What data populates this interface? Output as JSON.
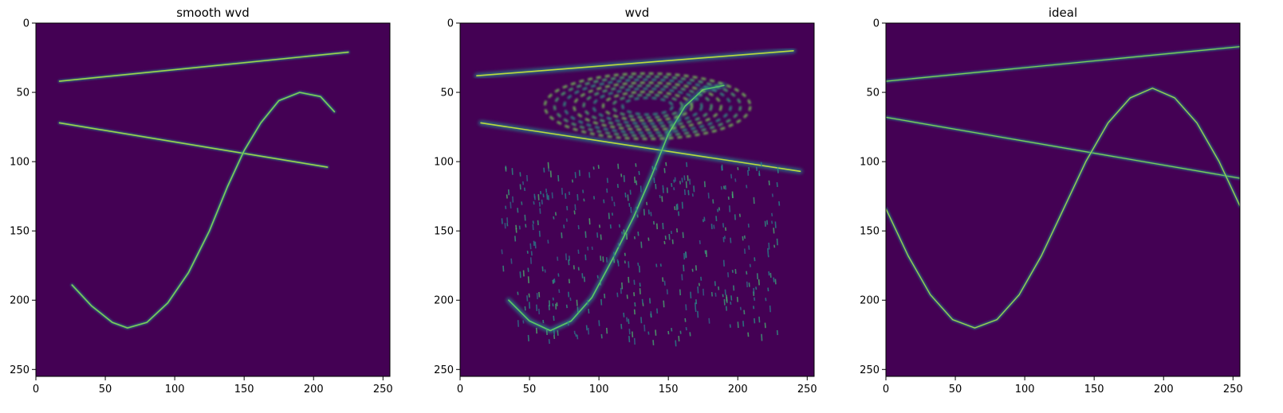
{
  "chart_data": [
    {
      "type": "heatmap",
      "title": "smooth wvd",
      "xlim": [
        0,
        255
      ],
      "ylim": [
        255,
        0
      ],
      "xticks": [
        0,
        50,
        100,
        150,
        200,
        250
      ],
      "yticks": [
        0,
        50,
        100,
        150,
        200,
        250
      ],
      "colormap": "viridis",
      "background": "#440154",
      "features": [
        {
          "kind": "line",
          "name": "upper chirp",
          "points": [
            [
              17,
              42
            ],
            [
              225,
              21
            ]
          ],
          "intensity": 0.85
        },
        {
          "kind": "line",
          "name": "lower chirp",
          "points": [
            [
              17,
              72
            ],
            [
              210,
              104
            ]
          ],
          "intensity": 0.85
        },
        {
          "kind": "curve",
          "name": "sine",
          "points": [
            [
              26,
              189
            ],
            [
              40,
              204
            ],
            [
              55,
              216
            ],
            [
              66,
              220
            ],
            [
              80,
              216
            ],
            [
              95,
              202
            ],
            [
              110,
              180
            ],
            [
              125,
              150
            ],
            [
              138,
              118
            ],
            [
              150,
              92
            ],
            [
              162,
              72
            ],
            [
              175,
              56
            ],
            [
              190,
              50
            ],
            [
              205,
              53
            ],
            [
              215,
              64
            ]
          ],
          "intensity": 0.8
        }
      ]
    },
    {
      "type": "heatmap",
      "title": "wvd",
      "xlim": [
        0,
        255
      ],
      "ylim": [
        255,
        0
      ],
      "xticks": [
        0,
        50,
        100,
        150,
        200,
        250
      ],
      "yticks": [
        0,
        50,
        100,
        150,
        200,
        250
      ],
      "colormap": "viridis",
      "background": "#440154",
      "features": [
        {
          "kind": "line",
          "name": "upper chirp",
          "points": [
            [
              12,
              38
            ],
            [
              240,
              20
            ]
          ],
          "intensity": 0.9
        },
        {
          "kind": "line",
          "name": "lower chirp",
          "points": [
            [
              15,
              72
            ],
            [
              245,
              107
            ]
          ],
          "intensity": 0.9
        },
        {
          "kind": "curve",
          "name": "sine",
          "points": [
            [
              35,
              200
            ],
            [
              50,
              215
            ],
            [
              65,
              222
            ],
            [
              80,
              215
            ],
            [
              95,
              198
            ],
            [
              110,
              170
            ],
            [
              125,
              140
            ],
            [
              138,
              110
            ],
            [
              150,
              80
            ],
            [
              162,
              60
            ],
            [
              175,
              48
            ],
            [
              190,
              45
            ]
          ],
          "intensity": 0.75
        },
        {
          "kind": "interference",
          "name": "cross terms",
          "points": [
            [
              20,
              30
            ],
            [
              250,
              235
            ]
          ],
          "intensity": 0.55
        }
      ]
    },
    {
      "type": "heatmap",
      "title": "ideal",
      "xlim": [
        0,
        255
      ],
      "ylim": [
        255,
        0
      ],
      "xticks": [
        0,
        50,
        100,
        150,
        200,
        250
      ],
      "yticks": [
        0,
        50,
        100,
        150,
        200,
        250
      ],
      "colormap": "viridis",
      "background": "#440154",
      "features": [
        {
          "kind": "line",
          "name": "upper chirp",
          "points": [
            [
              0,
              42
            ],
            [
              255,
              17
            ]
          ],
          "intensity": 0.8
        },
        {
          "kind": "line",
          "name": "lower chirp",
          "points": [
            [
              0,
              68
            ],
            [
              255,
              112
            ]
          ],
          "intensity": 0.8
        },
        {
          "kind": "curve",
          "name": "sine",
          "points": [
            [
              0,
              134
            ],
            [
              16,
              168
            ],
            [
              32,
              196
            ],
            [
              48,
              214
            ],
            [
              64,
              220
            ],
            [
              80,
              214
            ],
            [
              96,
              196
            ],
            [
              112,
              168
            ],
            [
              128,
              134
            ],
            [
              144,
              100
            ],
            [
              160,
              72
            ],
            [
              176,
              54
            ],
            [
              192,
              47
            ],
            [
              208,
              54
            ],
            [
              224,
              72
            ],
            [
              240,
              100
            ],
            [
              255,
              132
            ]
          ],
          "intensity": 0.85
        }
      ]
    }
  ],
  "colors": {
    "viridis_low": "#440154",
    "viridis_mid": "#21918c",
    "viridis_high": "#fde725",
    "axis": "#000000"
  }
}
